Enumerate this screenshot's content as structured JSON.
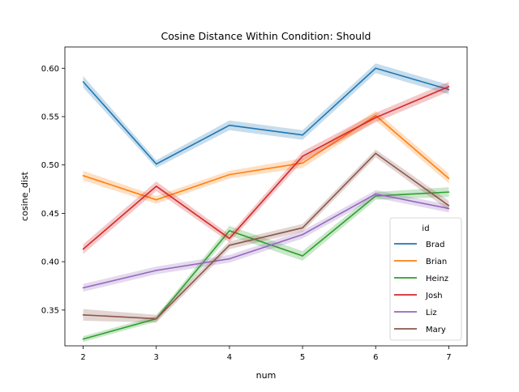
{
  "chart_data": {
    "type": "line",
    "title": "Cosine Distance Within Condition: Should",
    "xlabel": "num",
    "ylabel": "cosine_dist",
    "x": [
      2,
      3,
      4,
      5,
      6,
      7
    ],
    "xlim": [
      1.75,
      7.25
    ],
    "ylim": [
      0.313,
      0.622
    ],
    "xticks": [
      "2",
      "3",
      "4",
      "5",
      "6",
      "7"
    ],
    "yticks": [
      "0.35",
      "0.40",
      "0.45",
      "0.50",
      "0.55",
      "0.60"
    ],
    "grid": false,
    "legend": {
      "title": "id",
      "placement": "bottom-right"
    },
    "series": [
      {
        "name": "Brad",
        "color": "#1f77b4",
        "values": [
          0.586,
          0.501,
          0.541,
          0.531,
          0.6,
          0.578
        ],
        "ci": [
          0.006,
          0.004,
          0.005,
          0.005,
          0.005,
          0.005
        ]
      },
      {
        "name": "Brian",
        "color": "#ff7f0e",
        "values": [
          0.489,
          0.464,
          0.49,
          0.502,
          0.551,
          0.486
        ],
        "ci": [
          0.005,
          0.004,
          0.004,
          0.005,
          0.005,
          0.005
        ]
      },
      {
        "name": "Heinz",
        "color": "#2ca02c",
        "values": [
          0.32,
          0.341,
          0.432,
          0.406,
          0.468,
          0.472
        ],
        "ci": [
          0.003,
          0.003,
          0.005,
          0.005,
          0.004,
          0.005
        ]
      },
      {
        "name": "Josh",
        "color": "#d62728",
        "values": [
          0.413,
          0.478,
          0.424,
          0.509,
          0.549,
          0.581
        ],
        "ci": [
          0.005,
          0.005,
          0.004,
          0.005,
          0.005,
          0.005
        ]
      },
      {
        "name": "Liz",
        "color": "#9467bd",
        "values": [
          0.373,
          0.391,
          0.403,
          0.428,
          0.47,
          0.455
        ],
        "ci": [
          0.004,
          0.004,
          0.004,
          0.004,
          0.004,
          0.004
        ]
      },
      {
        "name": "Mary",
        "color": "#8c564b",
        "values": [
          0.345,
          0.341,
          0.417,
          0.435,
          0.512,
          0.458
        ],
        "ci": [
          0.006,
          0.004,
          0.004,
          0.004,
          0.004,
          0.005
        ]
      }
    ]
  }
}
